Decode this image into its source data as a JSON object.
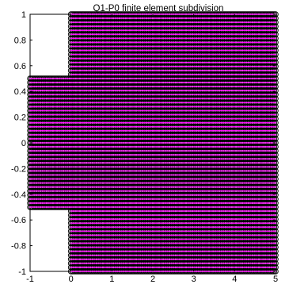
{
  "chart_data": {
    "type": "scatter",
    "title": "Q1-P0 finite element subdivision",
    "xlabel": "",
    "ylabel": "",
    "xlim": [
      -1,
      5
    ],
    "ylim": [
      -1,
      1
    ],
    "x_ticks": [
      -1,
      0,
      1,
      2,
      3,
      4,
      5
    ],
    "y_ticks": [
      -1,
      -0.8,
      -0.6,
      -0.4,
      -0.2,
      0,
      0.2,
      0.4,
      0.6,
      0.8,
      1
    ],
    "x_tick_labels": [
      "-1",
      "0",
      "1",
      "2",
      "3",
      "4",
      "5"
    ],
    "y_tick_labels": [
      "-1",
      "-0.8",
      "-0.6",
      "-0.4",
      "-0.2",
      "0",
      "0.2",
      "0.4",
      "0.6",
      "0.8",
      "1"
    ],
    "grid": false,
    "domain": "L-shaped step: inlet channel x in [-1,0], y in [-0.5,0.5]; main channel x in [0,5], y in [-1,1]",
    "mesh_spacing": 0.03125,
    "series": [
      {
        "marker": "circle",
        "color": "#000000",
        "regions": [
          {
            "x_range": [
              -1,
              0
            ],
            "y_range": [
              -0.5,
              0.5
            ]
          },
          {
            "x_range": [
              0,
              5
            ],
            "y_range": [
              -1,
              1
            ]
          }
        ]
      },
      {
        "marker": "dot",
        "color": "#ff00ff",
        "regions": [
          {
            "x_range": [
              -1,
              0
            ],
            "y_range": [
              -0.5,
              0.5
            ]
          },
          {
            "x_range": [
              0,
              5
            ],
            "y_range": [
              -1,
              1
            ]
          }
        ]
      }
    ]
  }
}
